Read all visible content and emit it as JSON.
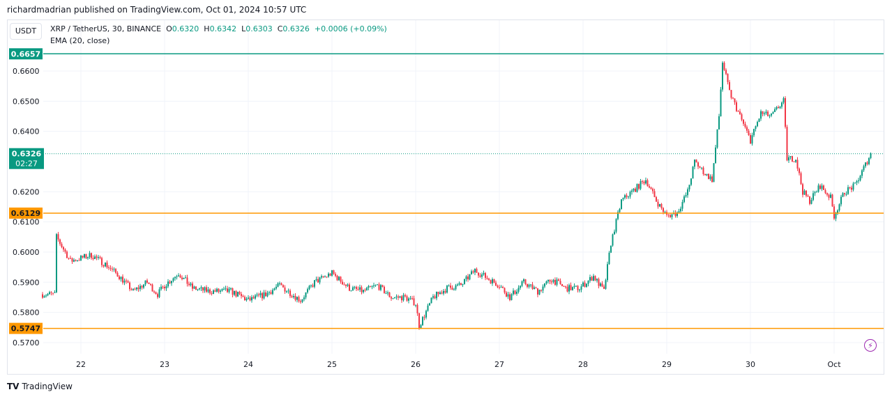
{
  "header": {
    "published": "richardmadrian published on TradingView.com, Oct 01, 2024 10:57 UTC"
  },
  "legend": {
    "currency": "USDT",
    "symbol": "XRP / TetherUS, 30, BINANCE",
    "o_label": "O",
    "o": "0.6320",
    "h_label": "H",
    "h": "0.6342",
    "l_label": "L",
    "l": "0.6303",
    "c_label": "C",
    "c": "0.6326",
    "change": "+0.0006 (+0.09%)",
    "indicator": "EMA (20, close)"
  },
  "footer": {
    "logo": "TradingView"
  },
  "icons": {
    "bolt": "lightning-icon",
    "logo": "tradingview-logo-icon"
  },
  "chart_data": {
    "type": "candlestick",
    "interval": "30m",
    "ylim": [
      0.566,
      0.668
    ],
    "yticks": [
      "0.6600",
      "0.6500",
      "0.6400",
      "0.6200",
      "0.6100",
      "0.6000",
      "0.5900",
      "0.5800",
      "0.5700"
    ],
    "xticks": [
      {
        "label": "22",
        "t": "09-22 00:00"
      },
      {
        "label": "23",
        "t": "09-23 00:00"
      },
      {
        "label": "24",
        "t": "09-24 00:00"
      },
      {
        "label": "25",
        "t": "09-25 00:00"
      },
      {
        "label": "26",
        "t": "09-26 00:00"
      },
      {
        "label": "27",
        "t": "09-27 00:00"
      },
      {
        "label": "28",
        "t": "09-28 00:00"
      },
      {
        "label": "29",
        "t": "09-29 00:00"
      },
      {
        "label": "30",
        "t": "09-30 00:00"
      },
      {
        "label": "Oct",
        "t": "10-01 00:00"
      }
    ],
    "hlines": [
      {
        "price": "0.6657",
        "color": "#089981"
      },
      {
        "price": "0.6129",
        "color": "#ff9800"
      },
      {
        "price": "0.5747",
        "color": "#ff9800"
      }
    ],
    "current": {
      "price": "0.6326",
      "countdown": "02:27",
      "color": "#089981"
    },
    "up_color": "#089981",
    "down_color": "#f23645",
    "close_path": [
      [
        "09-21 13:00",
        0.586
      ],
      [
        "09-21 16:30",
        0.586
      ],
      [
        "09-21 17:00",
        0.605
      ],
      [
        "09-21 19:00",
        0.601
      ],
      [
        "09-21 21:00",
        0.597
      ],
      [
        "09-22 00:00",
        0.598
      ],
      [
        "09-22 03:00",
        0.599
      ],
      [
        "09-22 07:00",
        0.596
      ],
      [
        "09-22 11:00",
        0.592
      ],
      [
        "09-22 15:00",
        0.587
      ],
      [
        "09-22 19:00",
        0.59
      ],
      [
        "09-22 22:00",
        0.586
      ],
      [
        "09-23 00:00",
        0.589
      ],
      [
        "09-23 04:00",
        0.593
      ],
      [
        "09-23 08:00",
        0.588
      ],
      [
        "09-23 13:00",
        0.587
      ],
      [
        "09-23 19:00",
        0.587
      ],
      [
        "09-24 00:00",
        0.584
      ],
      [
        "09-24 05:00",
        0.586
      ],
      [
        "09-24 09:00",
        0.589
      ],
      [
        "09-24 15:00",
        0.584
      ],
      [
        "09-24 19:00",
        0.59
      ],
      [
        "09-25 00:00",
        0.593
      ],
      [
        "09-25 05:00",
        0.588
      ],
      [
        "09-25 09:00",
        0.587
      ],
      [
        "09-25 13:00",
        0.589
      ],
      [
        "09-25 17:00",
        0.585
      ],
      [
        "09-25 21:00",
        0.585
      ],
      [
        "09-26 00:00",
        0.583
      ],
      [
        "09-26 01:00",
        0.5755
      ],
      [
        "09-26 05:00",
        0.585
      ],
      [
        "09-26 09:00",
        0.588
      ],
      [
        "09-26 13:00",
        0.589
      ],
      [
        "09-26 17:00",
        0.594
      ],
      [
        "09-26 21:00",
        0.591
      ],
      [
        "09-27 00:00",
        0.589
      ],
      [
        "09-27 03:00",
        0.585
      ],
      [
        "09-27 07:00",
        0.59
      ],
      [
        "09-27 11:00",
        0.587
      ],
      [
        "09-27 15:00",
        0.591
      ],
      [
        "09-27 19:00",
        0.588
      ],
      [
        "09-27 23:00",
        0.588
      ],
      [
        "09-28 03:00",
        0.592
      ],
      [
        "09-28 06:00",
        0.587
      ],
      [
        "09-28 08:00",
        0.603
      ],
      [
        "09-28 11:00",
        0.617
      ],
      [
        "09-28 14:00",
        0.62
      ],
      [
        "09-28 18:00",
        0.624
      ],
      [
        "09-28 21:00",
        0.617
      ],
      [
        "09-29 00:00",
        0.612
      ],
      [
        "09-29 03:00",
        0.613
      ],
      [
        "09-29 06:00",
        0.62
      ],
      [
        "09-29 08:00",
        0.63
      ],
      [
        "09-29 11:00",
        0.626
      ],
      [
        "09-29 13:00",
        0.624
      ],
      [
        "09-29 15:00",
        0.645
      ],
      [
        "09-29 16:00",
        0.663
      ],
      [
        "09-29 18:00",
        0.653
      ],
      [
        "09-29 21:00",
        0.645
      ],
      [
        "09-30 00:00",
        0.637
      ],
      [
        "09-30 03:00",
        0.646
      ],
      [
        "09-30 06:00",
        0.645
      ],
      [
        "09-30 08:00",
        0.648
      ],
      [
        "09-30 09:30",
        0.65
      ],
      [
        "09-30 10:30",
        0.631
      ],
      [
        "09-30 13:00",
        0.631
      ],
      [
        "09-30 15:00",
        0.62
      ],
      [
        "09-30 17:00",
        0.617
      ],
      [
        "09-30 20:00",
        0.622
      ],
      [
        "09-30 23:00",
        0.618
      ],
      [
        "10-01 00:00",
        0.612
      ],
      [
        "10-01 03:00",
        0.62
      ],
      [
        "10-01 06:00",
        0.622
      ],
      [
        "10-01 09:00",
        0.629
      ],
      [
        "10-01 10:30",
        0.6326
      ]
    ]
  }
}
